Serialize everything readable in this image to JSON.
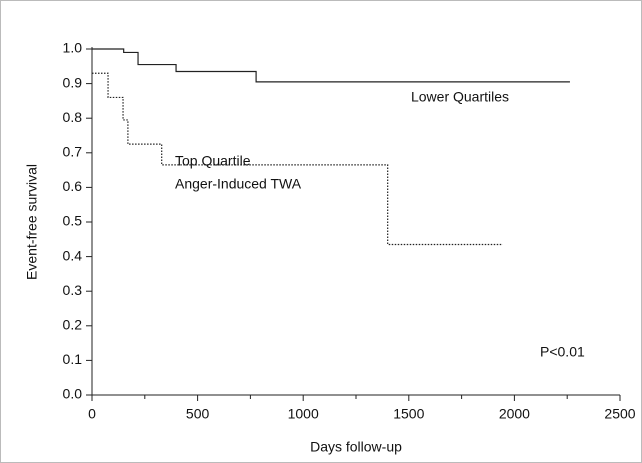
{
  "chart_data": {
    "type": "step",
    "xlabel": "Days follow-up",
    "ylabel": "Event-free survival",
    "xlim": [
      0,
      2500
    ],
    "xticks": [
      0,
      500,
      1000,
      1500,
      2000,
      2500
    ],
    "xminorticks": [
      250,
      750,
      1250,
      1750,
      2250
    ],
    "ylim": [
      0,
      1
    ],
    "yticks": [
      {
        "value": 0,
        "label": "0.0"
      },
      0.1,
      0.2,
      0.3,
      0.4,
      0.5,
      0.6,
      0.7,
      0.8,
      0.9,
      {
        "value": 1,
        "label": "1.0"
      }
    ],
    "grid": false,
    "series": [
      {
        "color": "#222222",
        "dash": "solid",
        "x": [
          0,
          150,
          218,
          398,
          777,
          2263
        ],
        "values": [
          1.0,
          0.99,
          0.955,
          0.935,
          0.905,
          0.905
        ]
      },
      {
        "color": "#222222",
        "dash": "dotted",
        "x": [
          0,
          76,
          147,
          170,
          330,
          1400,
          1945
        ],
        "values": [
          0.93,
          0.86,
          0.795,
          0.725,
          0.665,
          0.435,
          0.435
        ]
      }
    ],
    "annotations": [
      "Lower Quartiles",
      "Top Quartile",
      "Anger-Induced TWA",
      "P<0.01"
    ]
  }
}
